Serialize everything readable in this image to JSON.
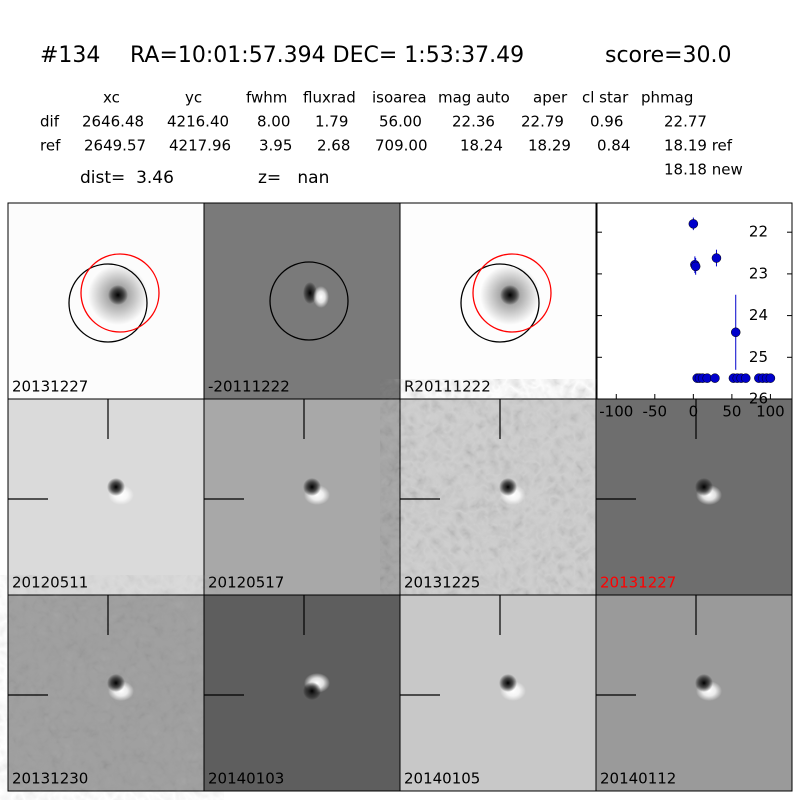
{
  "header": {
    "id": "#134",
    "coords": "RA=10:01:57.394 DEC= 1:53:37.49",
    "score": "score=30.0"
  },
  "table": {
    "columns": [
      "xc",
      "yc",
      "fwhm",
      "fluxrad",
      "isoarea",
      "mag auto",
      "aper",
      "cl star",
      "phmag"
    ],
    "rows": [
      [
        "dif",
        "2646.48",
        "4216.40",
        "8.00",
        "1.79",
        "56.00",
        "22.36",
        "22.79",
        "0.96",
        "22.77"
      ],
      [
        "ref",
        "2649.57",
        "4217.96",
        "3.95",
        "2.68",
        "709.00",
        "18.24",
        "18.29",
        "0.84",
        "18.19 ref"
      ]
    ],
    "note": "18.18 new"
  },
  "dist": "dist=  3.46",
  "z": "z=   nan",
  "panels": [
    {
      "label": "20131227",
      "color": "#000000"
    },
    {
      "label": "-20111222",
      "color": "#000000"
    },
    {
      "label": "R20111222",
      "color": "#000000"
    },
    null,
    {
      "label": "20120511",
      "color": "#000000"
    },
    {
      "label": "20120517",
      "color": "#000000"
    },
    {
      "label": "20131225",
      "color": "#000000"
    },
    {
      "label": "20131227",
      "color": "#ff0000"
    },
    {
      "label": "20131230",
      "color": "#000000"
    },
    {
      "label": "20140103",
      "color": "#000000"
    },
    {
      "label": "20140105",
      "color": "#000000"
    },
    {
      "label": "20140112",
      "color": "#000000"
    }
  ],
  "chart_data": {
    "type": "scatter",
    "x": [
      0,
      2,
      3,
      30,
      55,
      5,
      8,
      12,
      18,
      28,
      52,
      57,
      62,
      68,
      85,
      90,
      95,
      100
    ],
    "series": [
      {
        "color": "#0000cc",
        "values": [
          21.8,
          22.78,
          22.82,
          22.62,
          24.4,
          25.5,
          25.5,
          25.5,
          25.5,
          25.5,
          25.5,
          25.5,
          25.5,
          25.5,
          25.5,
          25.5,
          25.5,
          25.5
        ],
        "errors": [
          0.15,
          0.2,
          0.2,
          0.2,
          0.9,
          null,
          null,
          null,
          null,
          null,
          null,
          null,
          null,
          null,
          null,
          null,
          null,
          null
        ]
      }
    ],
    "xlim": [
      -125,
      128
    ],
    "ylim": [
      26,
      21.3
    ],
    "xticks": [
      -100,
      -50,
      0,
      50,
      100
    ],
    "yticks": [
      22,
      23,
      24,
      25,
      26
    ]
  }
}
